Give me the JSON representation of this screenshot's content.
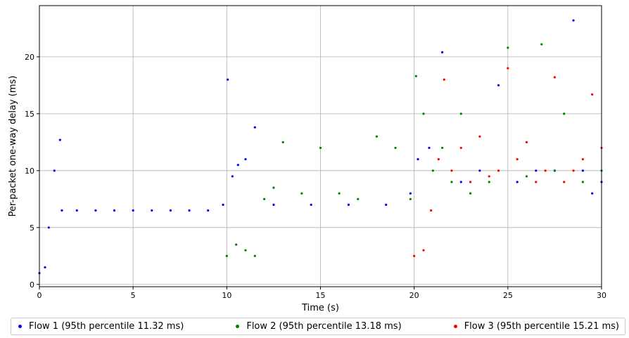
{
  "chart_data": {
    "type": "scatter",
    "xlabel": "Time (s)",
    "ylabel": "Per-packet one-way delay (ms)",
    "xlim": [
      0,
      30
    ],
    "ylim": [
      -0.2,
      24.5
    ],
    "xticks": [
      0,
      5,
      10,
      15,
      20,
      25,
      30
    ],
    "yticks": [
      0,
      5,
      10,
      15,
      20
    ],
    "grid": true,
    "legend_position": "bottom",
    "series": [
      {
        "name": "Flow 1 (95th percentile 11.32 ms)",
        "color": "#0000ff",
        "x": [
          0.0,
          0.3,
          0.5,
          0.8,
          1.1,
          1.2,
          2.0,
          3.0,
          4.0,
          5.0,
          6.0,
          7.0,
          8.0,
          9.0,
          9.8,
          10.05,
          10.3,
          10.6,
          11.0,
          11.5,
          12.5,
          14.5,
          16.5,
          18.5,
          19.8,
          20.2,
          20.8,
          21.5,
          22.5,
          23.5,
          24.5,
          25.5,
          26.5,
          27.5,
          28.5,
          29.0,
          29.5,
          30.0
        ],
        "y": [
          1.0,
          1.5,
          5.0,
          10.0,
          12.7,
          6.5,
          6.5,
          6.5,
          6.5,
          6.5,
          6.5,
          6.5,
          6.5,
          6.5,
          7.0,
          18.0,
          9.5,
          10.5,
          11.0,
          13.8,
          7.0,
          7.0,
          7.0,
          7.0,
          8.0,
          11.0,
          12.0,
          20.4,
          9.0,
          10.0,
          17.5,
          9.0,
          10.0,
          10.0,
          23.2,
          10.0,
          8.0,
          9.0
        ]
      },
      {
        "name": "Flow 2 (95th percentile 13.18 ms)",
        "color": "#008000",
        "x": [
          10.0,
          10.5,
          11.0,
          11.5,
          12.0,
          12.5,
          13.0,
          14.0,
          15.0,
          16.0,
          17.0,
          18.0,
          19.0,
          19.8,
          20.1,
          20.5,
          21.0,
          21.5,
          22.0,
          22.5,
          23.0,
          24.0,
          25.0,
          26.0,
          26.8,
          27.5,
          28.0,
          29.0,
          30.0
        ],
        "y": [
          2.5,
          3.5,
          3.0,
          2.5,
          7.5,
          8.5,
          12.5,
          8.0,
          12.0,
          8.0,
          7.5,
          13.0,
          12.0,
          7.5,
          18.3,
          15.0,
          10.0,
          12.0,
          9.0,
          15.0,
          8.0,
          9.0,
          20.8,
          9.5,
          21.1,
          10.0,
          15.0,
          9.0,
          10.0
        ]
      },
      {
        "name": "Flow 3 (95th percentile 15.21 ms)",
        "color": "#ff0000",
        "x": [
          20.0,
          20.5,
          20.9,
          21.3,
          21.6,
          22.0,
          22.5,
          23.0,
          23.5,
          24.0,
          24.5,
          25.0,
          25.5,
          26.0,
          26.5,
          27.0,
          27.5,
          28.0,
          28.5,
          29.0,
          29.5,
          30.0
        ],
        "y": [
          2.5,
          3.0,
          6.5,
          11.0,
          18.0,
          10.0,
          12.0,
          9.0,
          13.0,
          9.5,
          10.0,
          19.0,
          11.0,
          12.5,
          9.0,
          10.0,
          18.2,
          9.0,
          10.0,
          11.0,
          16.7,
          12.0
        ]
      }
    ]
  }
}
